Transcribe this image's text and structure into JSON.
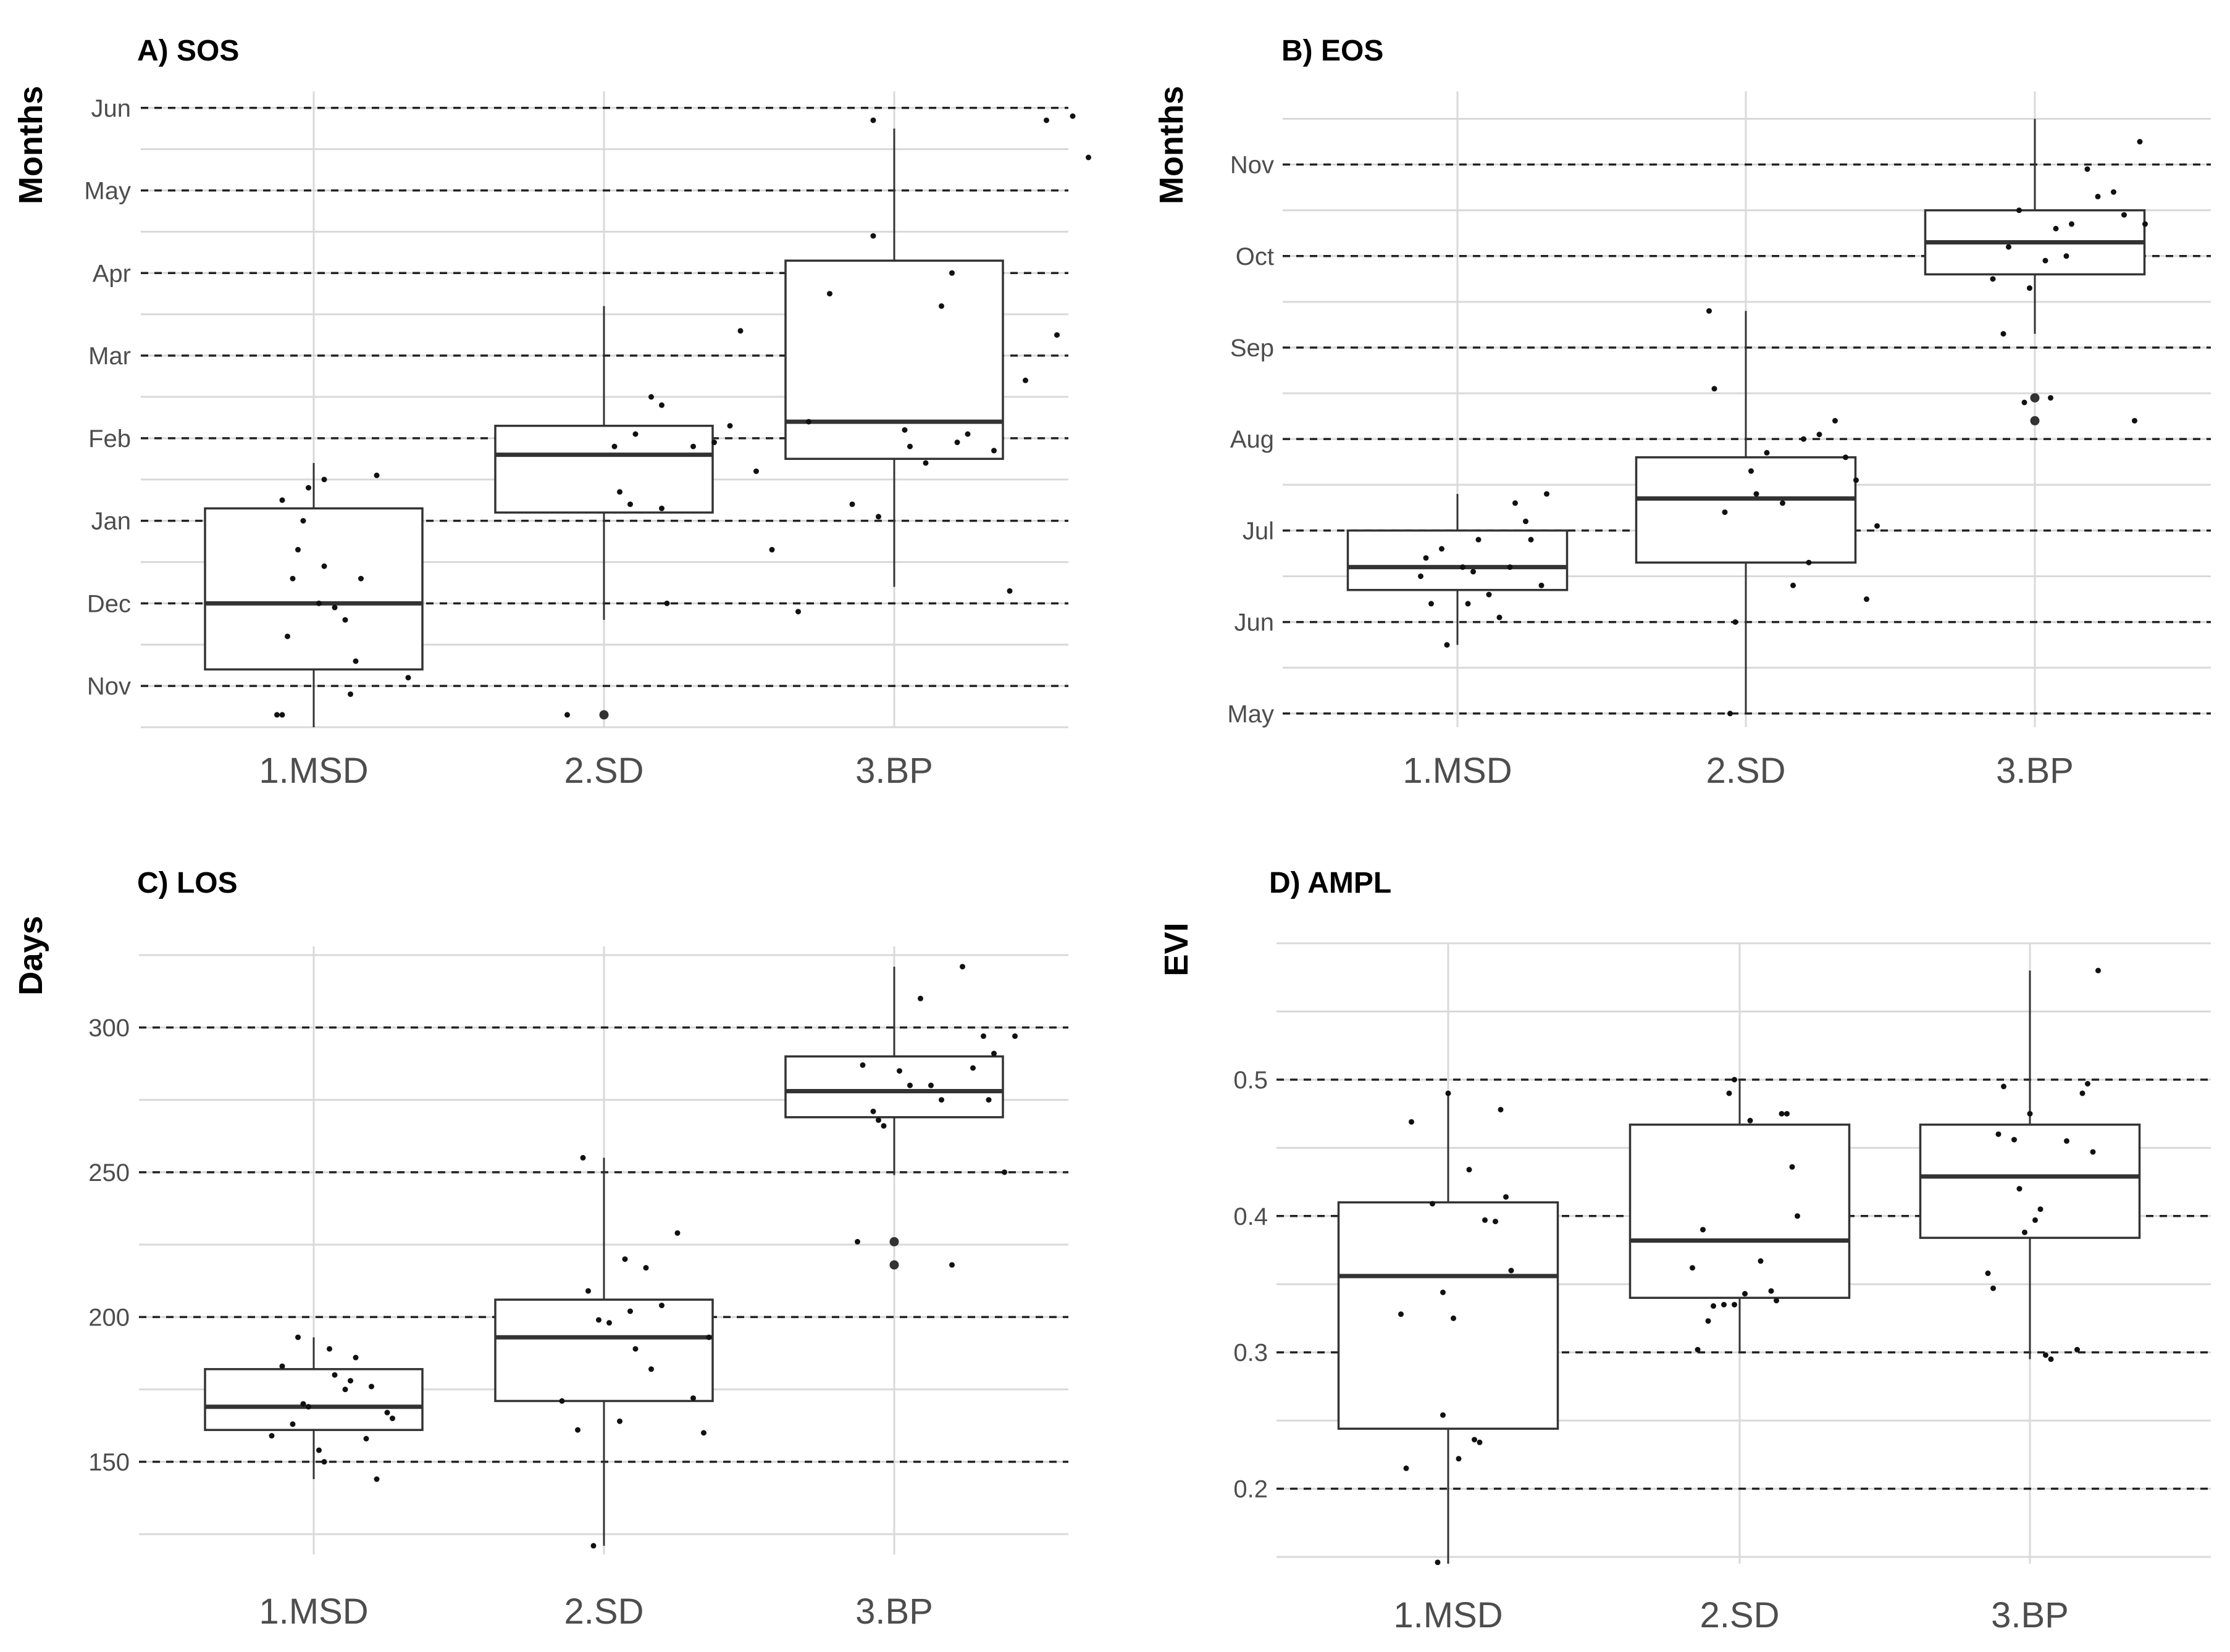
{
  "chart_data": [
    {
      "id": "sos",
      "type": "box",
      "title": "A) SOS",
      "ylabel": "Months",
      "categories": [
        "1.MSD",
        "2.SD",
        "3.BP"
      ],
      "ylim": [
        -0.5,
        7.2
      ],
      "yticks": [
        0,
        1,
        2,
        3,
        4,
        5,
        6,
        7
      ],
      "ytick_labels": [
        "Nov",
        "Dec",
        "Jan",
        "Feb",
        "Mar",
        "Apr",
        "May",
        "Jun"
      ],
      "dashed": [
        0,
        1,
        2,
        3,
        4,
        5,
        6,
        7
      ],
      "boxes": [
        {
          "q1": 0.2,
          "median": 1.0,
          "q3": 2.15,
          "whisker_low": -0.5,
          "whisker_high": 2.7,
          "outliers": []
        },
        {
          "q1": 2.1,
          "median": 2.8,
          "q3": 3.15,
          "whisker_low": 0.8,
          "whisker_high": 4.6,
          "outliers": [
            -0.35
          ]
        },
        {
          "q1": 2.75,
          "median": 3.2,
          "q3": 5.15,
          "whisker_low": 1.2,
          "whisker_high": 6.75,
          "outliers": []
        }
      ],
      "points": [
        [
          [
            -0.3,
            2.25
          ],
          [
            -0.1,
            2.0
          ],
          [
            0.1,
            1.45
          ],
          [
            0.3,
            0.8
          ],
          [
            0.4,
            0.3
          ],
          [
            -0.15,
            1.65
          ],
          [
            0.05,
            1.0
          ],
          [
            -0.25,
            0.6
          ],
          [
            0.2,
            0.95
          ],
          [
            0.45,
            1.3
          ],
          [
            -0.3,
            -0.35
          ],
          [
            0.35,
            -0.1
          ],
          [
            -0.05,
            2.4
          ],
          [
            0.6,
            2.55
          ],
          [
            0.9,
            0.1
          ],
          [
            -0.35,
            -0.35
          ],
          [
            0.1,
            2.5
          ],
          [
            -0.2,
            1.3
          ]
        ],
        [
          [
            0.1,
            2.9
          ],
          [
            0.3,
            3.05
          ],
          [
            0.55,
            3.4
          ],
          [
            0.45,
            3.5
          ],
          [
            0.15,
            2.35
          ],
          [
            0.25,
            2.2
          ],
          [
            0.6,
            1.0
          ],
          [
            0.85,
            2.9
          ],
          [
            1.05,
            2.95
          ],
          [
            1.2,
            3.15
          ],
          [
            1.3,
            4.3
          ],
          [
            1.45,
            2.6
          ],
          [
            1.6,
            1.65
          ],
          [
            1.85,
            0.9
          ],
          [
            1.95,
            3.2
          ],
          [
            2.15,
            4.75
          ],
          [
            0.55,
            2.15
          ],
          [
            -0.35,
            -0.35
          ]
        ],
        [
          [
            -0.4,
            2.2
          ],
          [
            -0.2,
            6.85
          ],
          [
            -0.15,
            2.05
          ],
          [
            0.1,
            3.1
          ],
          [
            0.15,
            2.9
          ],
          [
            0.3,
            2.7
          ],
          [
            0.45,
            4.6
          ],
          [
            0.6,
            2.95
          ],
          [
            0.7,
            3.05
          ],
          [
            0.95,
            2.85
          ],
          [
            1.1,
            1.15
          ],
          [
            1.25,
            3.7
          ],
          [
            1.45,
            6.85
          ],
          [
            1.55,
            4.25
          ],
          [
            1.7,
            6.9
          ],
          [
            1.85,
            6.4
          ],
          [
            -0.2,
            5.45
          ],
          [
            0.55,
            5.0
          ]
        ]
      ]
    },
    {
      "id": "eos",
      "type": "box",
      "title": "B) EOS",
      "ylabel": "Months",
      "categories": [
        "1.MSD",
        "2.SD",
        "3.BP"
      ],
      "ylim": [
        -0.15,
        6.8
      ],
      "yticks": [
        0,
        1,
        2,
        3,
        4,
        5,
        6
      ],
      "ytick_labels": [
        "May",
        "Jun",
        "Jul",
        "Aug",
        "Sep",
        "Oct",
        "Nov"
      ],
      "dashed": [
        0,
        1,
        2,
        3,
        4,
        5,
        6
      ],
      "boxes": [
        {
          "q1": 1.35,
          "median": 1.6,
          "q3": 2.0,
          "whisker_low": 0.75,
          "whisker_high": 2.4,
          "outliers": []
        },
        {
          "q1": 1.65,
          "median": 2.35,
          "q3": 2.8,
          "whisker_low": 0.0,
          "whisker_high": 4.4,
          "outliers": []
        },
        {
          "q1": 4.8,
          "median": 5.15,
          "q3": 5.5,
          "whisker_low": 4.15,
          "whisker_high": 6.5,
          "outliers": [
            3.45,
            3.2
          ]
        }
      ],
      "points": [
        [
          [
            -0.35,
            1.5
          ],
          [
            -0.25,
            1.2
          ],
          [
            -0.1,
            0.75
          ],
          [
            0.05,
            1.6
          ],
          [
            0.2,
            1.9
          ],
          [
            0.3,
            1.3
          ],
          [
            0.4,
            1.05
          ],
          [
            0.55,
            2.3
          ],
          [
            0.7,
            1.9
          ],
          [
            0.85,
            2.4
          ],
          [
            -0.15,
            1.8
          ],
          [
            0.15,
            1.55
          ],
          [
            -0.3,
            1.7
          ],
          [
            0.1,
            1.2
          ],
          [
            0.5,
            1.6
          ],
          [
            0.65,
            2.1
          ],
          [
            0.8,
            1.4
          ]
        ],
        [
          [
            -0.35,
            4.4
          ],
          [
            -0.3,
            3.55
          ],
          [
            -0.2,
            2.2
          ],
          [
            -0.1,
            1.0
          ],
          [
            0.05,
            2.65
          ],
          [
            0.2,
            2.85
          ],
          [
            0.35,
            2.3
          ],
          [
            0.45,
            1.4
          ],
          [
            0.6,
            1.65
          ],
          [
            0.7,
            3.05
          ],
          [
            0.85,
            3.2
          ],
          [
            0.95,
            2.8
          ],
          [
            1.05,
            2.55
          ],
          [
            1.15,
            1.25
          ],
          [
            1.25,
            2.05
          ],
          [
            -0.15,
            0.0
          ],
          [
            0.1,
            2.4
          ],
          [
            0.55,
            3.0
          ]
        ],
        [
          [
            -0.4,
            4.75
          ],
          [
            -0.3,
            4.15
          ],
          [
            -0.15,
            5.5
          ],
          [
            -0.05,
            4.65
          ],
          [
            0.1,
            4.95
          ],
          [
            0.2,
            5.3
          ],
          [
            0.35,
            5.35
          ],
          [
            0.5,
            5.95
          ],
          [
            0.6,
            5.65
          ],
          [
            0.75,
            5.7
          ],
          [
            0.85,
            5.45
          ],
          [
            0.95,
            3.2
          ],
          [
            1.05,
            5.35
          ],
          [
            0.3,
            5.0
          ],
          [
            -0.25,
            5.1
          ],
          [
            0.15,
            3.45
          ],
          [
            1.0,
            6.25
          ],
          [
            -0.1,
            3.4
          ]
        ]
      ]
    },
    {
      "id": "los",
      "type": "box",
      "title": "C) LOS",
      "ylabel": "Days",
      "categories": [
        "1.MSD",
        "2.SD",
        "3.BP"
      ],
      "ylim": [
        118,
        328
      ],
      "yticks": [
        150,
        200,
        250,
        300
      ],
      "ytick_labels": [
        "150",
        "200",
        "250",
        "300"
      ],
      "dashed": [
        150,
        200,
        250,
        300
      ],
      "boxes": [
        {
          "q1": 161,
          "median": 169,
          "q3": 182,
          "whisker_low": 144,
          "whisker_high": 193,
          "outliers": []
        },
        {
          "q1": 171,
          "median": 193,
          "q3": 206,
          "whisker_low": 121,
          "whisker_high": 255,
          "outliers": []
        },
        {
          "q1": 269,
          "median": 278,
          "q3": 290,
          "whisker_low": 249,
          "whisker_high": 321,
          "outliers": [
            226,
            218
          ]
        }
      ],
      "points": [
        [
          [
            -0.4,
            159
          ],
          [
            -0.2,
            163
          ],
          [
            -0.1,
            170
          ],
          [
            0.05,
            154
          ],
          [
            0.1,
            150
          ],
          [
            0.2,
            180
          ],
          [
            0.3,
            175
          ],
          [
            0.4,
            186
          ],
          [
            0.5,
            158
          ],
          [
            0.6,
            144
          ],
          [
            0.75,
            165
          ],
          [
            -0.3,
            183
          ],
          [
            -0.15,
            193
          ],
          [
            0.15,
            189
          ],
          [
            0.35,
            178
          ],
          [
            0.55,
            176
          ],
          [
            0.7,
            167
          ],
          [
            -0.05,
            169
          ]
        ],
        [
          [
            -0.4,
            171
          ],
          [
            -0.25,
            161
          ],
          [
            -0.15,
            209
          ],
          [
            -0.05,
            199
          ],
          [
            0.05,
            198
          ],
          [
            0.15,
            164
          ],
          [
            0.2,
            220
          ],
          [
            0.3,
            189
          ],
          [
            0.4,
            217
          ],
          [
            0.45,
            182
          ],
          [
            0.55,
            204
          ],
          [
            0.7,
            229
          ],
          [
            0.85,
            172
          ],
          [
            0.95,
            160
          ],
          [
            1.0,
            193
          ],
          [
            -0.2,
            255
          ],
          [
            -0.1,
            121
          ],
          [
            0.25,
            202
          ]
        ],
        [
          [
            -0.35,
            226
          ],
          [
            -0.3,
            287
          ],
          [
            -0.2,
            271
          ],
          [
            -0.1,
            266
          ],
          [
            0.05,
            285
          ],
          [
            0.15,
            280
          ],
          [
            0.25,
            310
          ],
          [
            0.35,
            280
          ],
          [
            0.45,
            275
          ],
          [
            0.55,
            218
          ],
          [
            0.65,
            321
          ],
          [
            0.75,
            286
          ],
          [
            0.85,
            297
          ],
          [
            0.95,
            291
          ],
          [
            1.05,
            250
          ],
          [
            1.15,
            297
          ],
          [
            -0.15,
            268
          ],
          [
            0.9,
            275
          ]
        ]
      ]
    },
    {
      "id": "ampl",
      "type": "box",
      "title": "D) AMPL",
      "ylabel": "EVI",
      "categories": [
        "1.MSD",
        "2.SD",
        "3.BP"
      ],
      "ylim": [
        0.145,
        0.6
      ],
      "yticks": [
        0.2,
        0.3,
        0.4,
        0.5
      ],
      "ytick_labels": [
        "0.2",
        "0.3",
        "0.4",
        "0.5"
      ],
      "dashed": [
        0.2,
        0.3,
        0.4,
        0.5
      ],
      "boxes": [
        {
          "q1": 0.244,
          "median": 0.356,
          "q3": 0.41,
          "whisker_low": 0.145,
          "whisker_high": 0.49,
          "outliers": []
        },
        {
          "q1": 0.34,
          "median": 0.382,
          "q3": 0.467,
          "whisker_low": 0.3,
          "whisker_high": 0.5,
          "outliers": []
        },
        {
          "q1": 0.384,
          "median": 0.429,
          "q3": 0.467,
          "whisker_low": 0.295,
          "whisker_high": 0.58,
          "outliers": []
        }
      ],
      "points": [
        [
          [
            -0.45,
            0.328
          ],
          [
            -0.4,
            0.215
          ],
          [
            -0.35,
            0.469
          ],
          [
            -0.15,
            0.409
          ],
          [
            -0.1,
            0.146
          ],
          [
            -0.05,
            0.254
          ],
          [
            0.0,
            0.49
          ],
          [
            -0.05,
            0.344
          ],
          [
            0.05,
            0.325
          ],
          [
            0.1,
            0.222
          ],
          [
            0.2,
            0.434
          ],
          [
            0.25,
            0.236
          ],
          [
            0.3,
            0.234
          ],
          [
            0.35,
            0.397
          ],
          [
            0.45,
            0.396
          ],
          [
            0.5,
            0.478
          ],
          [
            0.55,
            0.414
          ],
          [
            0.6,
            0.36
          ]
        ],
        [
          [
            -0.45,
            0.362
          ],
          [
            -0.4,
            0.302
          ],
          [
            -0.35,
            0.39
          ],
          [
            -0.3,
            0.323
          ],
          [
            -0.25,
            0.334
          ],
          [
            -0.15,
            0.335
          ],
          [
            -0.1,
            0.49
          ],
          [
            -0.05,
            0.5
          ],
          [
            0.05,
            0.343
          ],
          [
            0.1,
            0.47
          ],
          [
            0.2,
            0.367
          ],
          [
            0.3,
            0.345
          ],
          [
            0.35,
            0.338
          ],
          [
            0.4,
            0.475
          ],
          [
            0.45,
            0.475
          ],
          [
            0.5,
            0.436
          ],
          [
            0.55,
            0.4
          ],
          [
            -0.05,
            0.335
          ]
        ],
        [
          [
            -0.4,
            0.358
          ],
          [
            -0.35,
            0.347
          ],
          [
            -0.3,
            0.46
          ],
          [
            -0.25,
            0.495
          ],
          [
            -0.15,
            0.456
          ],
          [
            -0.1,
            0.42
          ],
          [
            -0.05,
            0.388
          ],
          [
            0.0,
            0.475
          ],
          [
            0.05,
            0.397
          ],
          [
            0.1,
            0.405
          ],
          [
            0.15,
            0.298
          ],
          [
            0.2,
            0.295
          ],
          [
            0.35,
            0.455
          ],
          [
            0.45,
            0.302
          ],
          [
            0.5,
            0.49
          ],
          [
            0.55,
            0.497
          ],
          [
            0.6,
            0.447
          ],
          [
            0.65,
            0.58
          ]
        ]
      ]
    }
  ]
}
